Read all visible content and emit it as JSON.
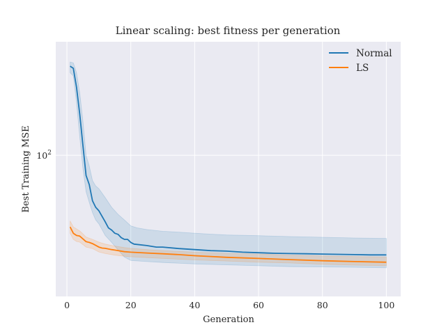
{
  "chart_data": {
    "type": "line",
    "title": "Linear scaling: best fitness per generation",
    "xlabel": "Generation",
    "ylabel": "Best Training MSE",
    "xlim": [
      -3.5,
      104.5
    ],
    "ylim": [
      25,
      305
    ],
    "yscale": "log",
    "xticks": [
      0,
      20,
      40,
      60,
      80,
      100
    ],
    "xtick_labels": [
      "0",
      "20",
      "40",
      "60",
      "80",
      "100"
    ],
    "yticks": [
      100
    ],
    "ytick_labels": {
      "base": "10",
      "exponent": "2"
    },
    "grid": true,
    "legend": "top-right",
    "colors": {
      "background": "#eaeaf2",
      "grid": "#ffffff"
    },
    "series": [
      {
        "name": "Normal",
        "color": "#1f77b4",
        "points": [
          [
            1,
            240
          ],
          [
            2,
            235
          ],
          [
            3,
            195
          ],
          [
            4,
            150
          ],
          [
            5,
            110
          ],
          [
            6,
            82
          ],
          [
            7,
            75
          ],
          [
            8,
            64
          ],
          [
            9,
            60
          ],
          [
            10,
            58
          ],
          [
            12,
            52
          ],
          [
            13,
            49
          ],
          [
            14,
            48
          ],
          [
            15,
            46.5
          ],
          [
            16,
            46
          ],
          [
            17,
            44.5
          ],
          [
            18,
            43.8
          ],
          [
            19,
            43.8
          ],
          [
            20,
            42.5
          ],
          [
            21,
            41.8
          ],
          [
            25,
            41.2
          ],
          [
            28,
            40.6
          ],
          [
            30,
            40.6
          ],
          [
            35,
            40.0
          ],
          [
            40,
            39.6
          ],
          [
            45,
            39.2
          ],
          [
            50,
            39.0
          ],
          [
            55,
            38.6
          ],
          [
            60,
            38.4
          ],
          [
            65,
            38.2
          ],
          [
            70,
            38.1
          ],
          [
            75,
            38.0
          ],
          [
            80,
            37.9
          ],
          [
            85,
            37.8
          ],
          [
            90,
            37.7
          ],
          [
            95,
            37.6
          ],
          [
            100,
            37.6
          ]
        ],
        "upper": [
          [
            1,
            250
          ],
          [
            2,
            248
          ],
          [
            3,
            225
          ],
          [
            4,
            185
          ],
          [
            5,
            140
          ],
          [
            6,
            100
          ],
          [
            7,
            90
          ],
          [
            8,
            78
          ],
          [
            9,
            74
          ],
          [
            10,
            72
          ],
          [
            12,
            66
          ],
          [
            14,
            60
          ],
          [
            16,
            56
          ],
          [
            18,
            53
          ],
          [
            20,
            50
          ],
          [
            22,
            49
          ],
          [
            25,
            48.2
          ],
          [
            30,
            47.4
          ],
          [
            35,
            47.0
          ],
          [
            40,
            46.5
          ],
          [
            45,
            46.1
          ],
          [
            50,
            45.7
          ],
          [
            60,
            45.4
          ],
          [
            70,
            45.0
          ],
          [
            80,
            44.7
          ],
          [
            90,
            44.4
          ],
          [
            100,
            44.2
          ]
        ],
        "lower": [
          [
            1,
            225
          ],
          [
            2,
            218
          ],
          [
            3,
            168
          ],
          [
            4,
            120
          ],
          [
            5,
            88
          ],
          [
            6,
            70
          ],
          [
            7,
            63
          ],
          [
            8,
            57
          ],
          [
            9,
            53
          ],
          [
            10,
            51
          ],
          [
            12,
            45.5
          ],
          [
            14,
            42.5
          ],
          [
            16,
            39.5
          ],
          [
            18,
            36.8
          ],
          [
            20,
            35.6
          ],
          [
            25,
            35.2
          ],
          [
            30,
            34.9
          ],
          [
            40,
            34.4
          ],
          [
            50,
            34.1
          ],
          [
            60,
            33.8
          ],
          [
            70,
            33.5
          ],
          [
            80,
            33.4
          ],
          [
            90,
            33.3
          ],
          [
            100,
            33.1
          ]
        ]
      },
      {
        "name": "LS",
        "color": "#ff7f0e",
        "points": [
          [
            1,
            49.5
          ],
          [
            2,
            46.5
          ],
          [
            3,
            45.5
          ],
          [
            4,
            45.2
          ],
          [
            5,
            44.0
          ],
          [
            6,
            42.8
          ],
          [
            7,
            42.5
          ],
          [
            8,
            42.0
          ],
          [
            10,
            40.6
          ],
          [
            11,
            40.2
          ],
          [
            12,
            40.1
          ],
          [
            14,
            39.6
          ],
          [
            15,
            39.4
          ],
          [
            18,
            38.8
          ],
          [
            20,
            38.6
          ],
          [
            25,
            38.3
          ],
          [
            30,
            38.0
          ],
          [
            35,
            37.7
          ],
          [
            40,
            37.3
          ],
          [
            45,
            37.0
          ],
          [
            50,
            36.7
          ],
          [
            60,
            36.3
          ],
          [
            70,
            35.9
          ],
          [
            80,
            35.5
          ],
          [
            90,
            35.2
          ],
          [
            100,
            35.0
          ]
        ],
        "upper": [
          [
            1,
            52.5
          ],
          [
            2,
            49.5
          ],
          [
            3,
            48.5
          ],
          [
            4,
            47.6
          ],
          [
            5,
            46.2
          ],
          [
            6,
            44.8
          ],
          [
            8,
            43.8
          ],
          [
            10,
            42.6
          ],
          [
            12,
            41.8
          ],
          [
            15,
            41.0
          ],
          [
            18,
            40.4
          ],
          [
            20,
            40.1
          ],
          [
            25,
            39.6
          ],
          [
            30,
            39.2
          ],
          [
            40,
            38.6
          ],
          [
            50,
            38.2
          ],
          [
            60,
            37.9
          ],
          [
            70,
            37.5
          ],
          [
            80,
            37.2
          ],
          [
            90,
            37.0
          ],
          [
            100,
            36.8
          ]
        ],
        "lower": [
          [
            1,
            46.5
          ],
          [
            2,
            43.8
          ],
          [
            3,
            42.9
          ],
          [
            4,
            42.6
          ],
          [
            5,
            41.6
          ],
          [
            6,
            40.6
          ],
          [
            8,
            40.0
          ],
          [
            10,
            38.7
          ],
          [
            12,
            38.1
          ],
          [
            15,
            37.5
          ],
          [
            18,
            37.1
          ],
          [
            20,
            36.9
          ],
          [
            25,
            36.6
          ],
          [
            30,
            36.3
          ],
          [
            40,
            35.8
          ],
          [
            50,
            35.4
          ],
          [
            60,
            35.0
          ],
          [
            70,
            34.7
          ],
          [
            80,
            34.3
          ],
          [
            90,
            34.0
          ],
          [
            100,
            33.8
          ]
        ]
      }
    ]
  }
}
